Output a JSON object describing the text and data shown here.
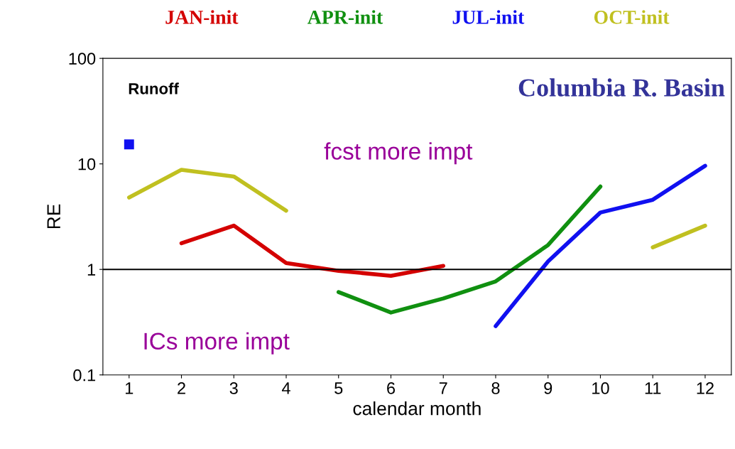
{
  "chart_data": {
    "type": "line",
    "xlabel": "calendar month",
    "ylabel": "RE",
    "x": [
      1,
      2,
      3,
      4,
      5,
      6,
      7,
      8,
      9,
      10,
      11,
      12
    ],
    "series": [
      {
        "name": "JAN-init",
        "color": "#d40000",
        "values": [
          null,
          1.77,
          2.6,
          1.15,
          0.97,
          0.87,
          1.08,
          null,
          null,
          null,
          null,
          null
        ]
      },
      {
        "name": "APR-init",
        "color": "#109010",
        "values": [
          null,
          null,
          null,
          null,
          0.61,
          0.39,
          0.53,
          0.77,
          1.7,
          6.1,
          null,
          null
        ]
      },
      {
        "name": "JUL-init",
        "color": "#1010f0",
        "values": [
          15.3,
          null,
          null,
          null,
          null,
          null,
          null,
          0.29,
          1.19,
          3.46,
          4.57,
          9.6
        ]
      },
      {
        "name": "OCT-init",
        "color": "#c0c020",
        "values": [
          4.8,
          8.8,
          7.6,
          3.6,
          null,
          null,
          null,
          null,
          null,
          null,
          1.62,
          2.6
        ]
      }
    ],
    "log": "y",
    "xlim": [
      0.5,
      12.5
    ],
    "ylim": [
      0.1,
      100
    ],
    "xticks": [
      1,
      2,
      3,
      4,
      5,
      6,
      7,
      8,
      9,
      10,
      11,
      12
    ],
    "yticks": [
      0.1,
      1,
      10,
      100
    ],
    "grid": false,
    "legend": "top",
    "line_style": "solid",
    "ref_lines": [
      {
        "axis": "y",
        "value": 1,
        "color": "#000000"
      }
    ],
    "annotations": [
      "Runoff",
      "Columbia R. Basin",
      "fcst more impt",
      "ICs more impt"
    ]
  }
}
